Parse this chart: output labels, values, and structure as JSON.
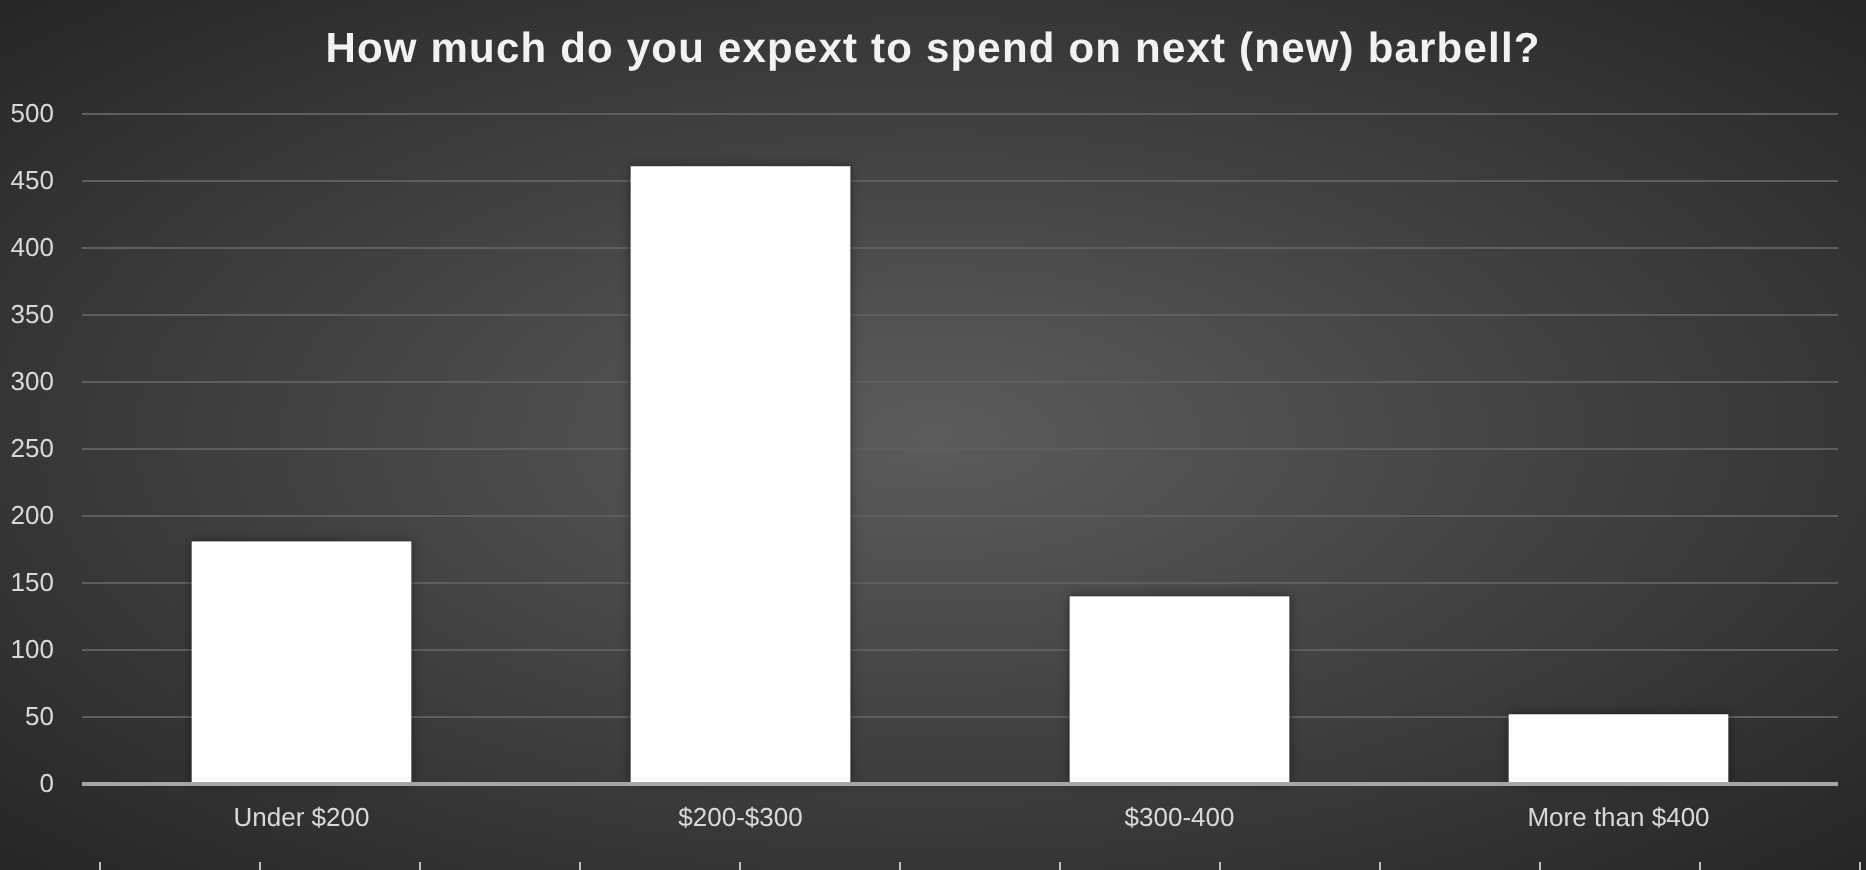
{
  "chart_data": {
    "type": "bar",
    "title": "How much do you expext to spend on next (new) barbell?",
    "categories": [
      "Under $200",
      "$200-$300",
      "$300-400",
      "More than $400"
    ],
    "values": [
      181,
      461,
      140,
      52
    ],
    "color": "#ffffff",
    "ylim": [
      0,
      500
    ],
    "yticks": [
      0,
      50,
      100,
      150,
      200,
      250,
      300,
      350,
      400,
      450,
      500
    ],
    "grid": "y"
  }
}
